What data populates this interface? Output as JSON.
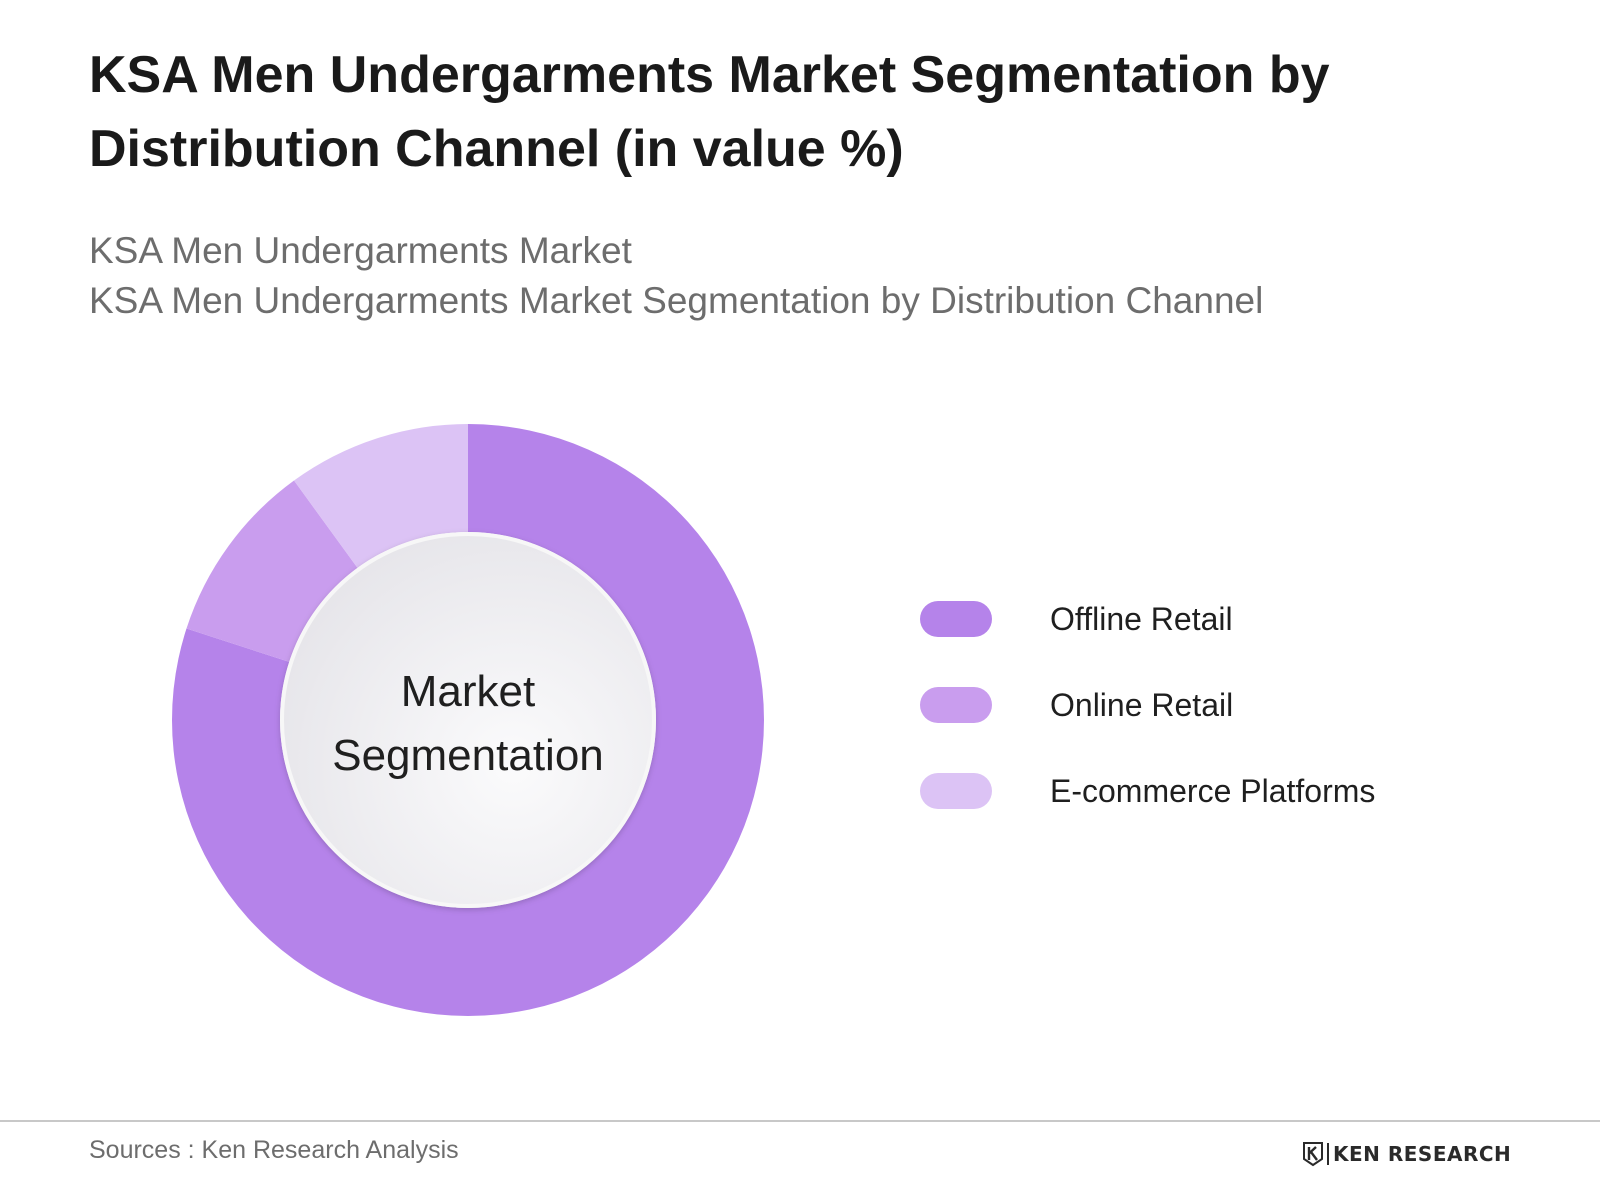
{
  "title": "KSA Men Undergarments Market Segmentation by Distribution Channel (in value %)",
  "subtitle_lines": [
    "KSA Men Undergarments Market",
    "KSA Men Undergarments Market Segmentation by Distribution Channel"
  ],
  "center_label_lines": [
    "Market",
    "Segmentation"
  ],
  "source": "Sources : Ken Research Analysis",
  "brand": {
    "name": "KEN RESEARCH",
    "logo_letter": "K"
  },
  "colors": {
    "offline_retail": "#b583ea",
    "online_retail": "#c99dee",
    "ecommerce_platforms": "#dcc3f5",
    "center_fill": "#f2f2f4",
    "title": "#1a1a1a",
    "subtitle": "#6d6d6d"
  },
  "chart_data": {
    "type": "pie",
    "donut": true,
    "categories": [
      "Offline Retail",
      "Online Retail",
      "E-commerce Platforms"
    ],
    "values": [
      80,
      10,
      10
    ],
    "unit": "%",
    "legend_position": "right",
    "start_angle": "top",
    "direction": "clockwise"
  }
}
